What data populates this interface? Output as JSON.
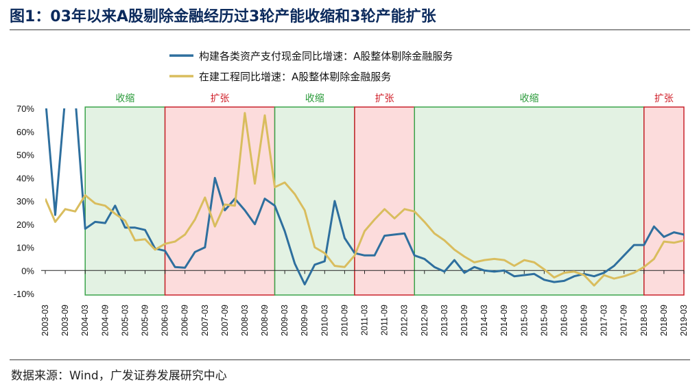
{
  "figure": {
    "title": "图1：03年以来A股剔除金融经历过3轮产能收缩和3轮产能扩张",
    "source": "数据来源：Wind，广发证券发展研究中心"
  },
  "chart_data": {
    "type": "line",
    "ylim": [
      -10,
      70
    ],
    "y_ticks": [
      -10,
      0,
      10,
      20,
      30,
      40,
      50,
      60,
      70
    ],
    "y_tick_labels": [
      "-10%",
      "0%",
      "10%",
      "20%",
      "30%",
      "40%",
      "50%",
      "60%",
      "70%"
    ],
    "x_ticks": [
      "2003-03",
      "2003-09",
      "2004-03",
      "2004-09",
      "2005-03",
      "2005-09",
      "2006-03",
      "2006-09",
      "2007-03",
      "2007-09",
      "2008-03",
      "2008-09",
      "2009-03",
      "2009-09",
      "2010-03",
      "2010-09",
      "2011-03",
      "2011-09",
      "2012-03",
      "2012-09",
      "2013-03",
      "2013-09",
      "2014-03",
      "2014-09",
      "2015-03",
      "2015-09",
      "2016-03",
      "2016-09",
      "2017-03",
      "2017-09",
      "2018-03",
      "2018-09",
      "2019-03"
    ],
    "grid": false,
    "legend_position": "top",
    "phases": [
      {
        "label": "收缩",
        "start": "2004-03",
        "end": "2006-03",
        "kind": "contraction"
      },
      {
        "label": "扩张",
        "start": "2006-03",
        "end": "2008-12",
        "kind": "expansion"
      },
      {
        "label": "收缩",
        "start": "2008-12",
        "end": "2010-12",
        "kind": "contraction"
      },
      {
        "label": "扩张",
        "start": "2010-12",
        "end": "2012-06",
        "kind": "expansion"
      },
      {
        "label": "收缩",
        "start": "2012-06",
        "end": "2018-03",
        "kind": "contraction"
      },
      {
        "label": "扩张",
        "start": "2018-03",
        "end": "2019-03",
        "kind": "expansion"
      }
    ],
    "series": [
      {
        "name": "构建各类资产支付现金同比增速：A股整体剔除金融服务",
        "color": "#2e6f9e",
        "points": [
          [
            "2003-03",
            75
          ],
          [
            "2003-06",
            24
          ],
          [
            "2003-09",
            75
          ],
          [
            "2003-12",
            75
          ],
          [
            "2004-03",
            18
          ],
          [
            "2004-06",
            21
          ],
          [
            "2004-09",
            20.5
          ],
          [
            "2004-12",
            28
          ],
          [
            "2005-03",
            18.5
          ],
          [
            "2005-06",
            18.5
          ],
          [
            "2005-09",
            17.5
          ],
          [
            "2005-12",
            9.5
          ],
          [
            "2006-03",
            8.5
          ],
          [
            "2006-06",
            1.5
          ],
          [
            "2006-09",
            1.2
          ],
          [
            "2006-12",
            8
          ],
          [
            "2007-03",
            10
          ],
          [
            "2007-06",
            40
          ],
          [
            "2007-09",
            26
          ],
          [
            "2007-12",
            31
          ],
          [
            "2008-03",
            26
          ],
          [
            "2008-06",
            20
          ],
          [
            "2008-09",
            31
          ],
          [
            "2008-12",
            28
          ],
          [
            "2009-03",
            17
          ],
          [
            "2009-06",
            3
          ],
          [
            "2009-09",
            -6
          ],
          [
            "2009-12",
            2.5
          ],
          [
            "2010-03",
            4
          ],
          [
            "2010-06",
            30
          ],
          [
            "2010-09",
            14
          ],
          [
            "2010-12",
            7.5
          ],
          [
            "2011-03",
            6.5
          ],
          [
            "2011-06",
            6.5
          ],
          [
            "2011-09",
            15
          ],
          [
            "2011-12",
            15.5
          ],
          [
            "2012-03",
            16
          ],
          [
            "2012-06",
            6.5
          ],
          [
            "2012-09",
            5
          ],
          [
            "2012-12",
            1.5
          ],
          [
            "2013-03",
            -0.5
          ],
          [
            "2013-06",
            4.5
          ],
          [
            "2013-09",
            -1
          ],
          [
            "2013-12",
            1.5
          ],
          [
            "2014-03",
            0
          ],
          [
            "2014-06",
            -0.5
          ],
          [
            "2014-09",
            0
          ],
          [
            "2014-12",
            -2.5
          ],
          [
            "2015-03",
            -2
          ],
          [
            "2015-06",
            -1.5
          ],
          [
            "2015-09",
            -4
          ],
          [
            "2015-12",
            -5
          ],
          [
            "2016-03",
            -4.5
          ],
          [
            "2016-06",
            -2.5
          ],
          [
            "2016-09",
            -1.5
          ],
          [
            "2016-12",
            -2.5
          ],
          [
            "2017-03",
            -1
          ],
          [
            "2017-06",
            2
          ],
          [
            "2017-09",
            6.5
          ],
          [
            "2017-12",
            11
          ],
          [
            "2018-03",
            11
          ],
          [
            "2018-06",
            19
          ],
          [
            "2018-09",
            14.5
          ],
          [
            "2018-12",
            16.5
          ],
          [
            "2019-03",
            15.5
          ],
          [
            "2019-06",
            7
          ]
        ]
      },
      {
        "name": "在建工程同比增速：A股整体剔除金融服务",
        "color": "#d9bd5e",
        "points": [
          [
            "2003-03",
            31
          ],
          [
            "2003-06",
            21
          ],
          [
            "2003-09",
            26.5
          ],
          [
            "2003-12",
            25.5
          ],
          [
            "2004-03",
            32.5
          ],
          [
            "2004-06",
            29
          ],
          [
            "2004-09",
            28
          ],
          [
            "2004-12",
            24.5
          ],
          [
            "2005-03",
            21.5
          ],
          [
            "2005-06",
            13
          ],
          [
            "2005-09",
            13.5
          ],
          [
            "2005-12",
            9
          ],
          [
            "2006-03",
            11.5
          ],
          [
            "2006-06",
            12.5
          ],
          [
            "2006-09",
            15.5
          ],
          [
            "2006-12",
            22
          ],
          [
            "2007-03",
            31.5
          ],
          [
            "2007-06",
            19
          ],
          [
            "2007-09",
            28.5
          ],
          [
            "2007-12",
            28
          ],
          [
            "2008-03",
            68
          ],
          [
            "2008-06",
            37.5
          ],
          [
            "2008-09",
            67
          ],
          [
            "2008-12",
            36
          ],
          [
            "2009-03",
            38
          ],
          [
            "2009-06",
            33
          ],
          [
            "2009-09",
            26
          ],
          [
            "2009-12",
            10
          ],
          [
            "2010-03",
            7.5
          ],
          [
            "2010-06",
            2
          ],
          [
            "2010-09",
            1.5
          ],
          [
            "2010-12",
            6.5
          ],
          [
            "2011-03",
            17
          ],
          [
            "2011-06",
            22
          ],
          [
            "2011-09",
            26.5
          ],
          [
            "2011-12",
            22.5
          ],
          [
            "2012-03",
            26.5
          ],
          [
            "2012-06",
            25.5
          ],
          [
            "2012-09",
            21
          ],
          [
            "2012-12",
            16
          ],
          [
            "2013-03",
            13
          ],
          [
            "2013-06",
            9
          ],
          [
            "2013-09",
            6
          ],
          [
            "2013-12",
            3.5
          ],
          [
            "2014-03",
            4.5
          ],
          [
            "2014-06",
            5
          ],
          [
            "2014-09",
            4.5
          ],
          [
            "2014-12",
            2
          ],
          [
            "2015-03",
            4.5
          ],
          [
            "2015-06",
            3.5
          ],
          [
            "2015-09",
            0.5
          ],
          [
            "2015-12",
            -3
          ],
          [
            "2016-03",
            -1
          ],
          [
            "2016-06",
            -0.5
          ],
          [
            "2016-09",
            -2
          ],
          [
            "2016-12",
            -6.5
          ],
          [
            "2017-03",
            -2
          ],
          [
            "2017-06",
            -3.5
          ],
          [
            "2017-09",
            -2.5
          ],
          [
            "2017-12",
            -1
          ],
          [
            "2018-03",
            1.5
          ],
          [
            "2018-06",
            5
          ],
          [
            "2018-09",
            12.5
          ],
          [
            "2018-12",
            12
          ],
          [
            "2019-03",
            13
          ],
          [
            "2019-06",
            14.5
          ]
        ]
      }
    ]
  },
  "colors": {
    "contraction_fill": "#e3f2e3",
    "contraction_border": "#3aa34a",
    "contraction_label": "#2a9a3a",
    "expansion_fill": "#fcdcdc",
    "expansion_border": "#c8202a",
    "expansion_label": "#d0202a"
  }
}
